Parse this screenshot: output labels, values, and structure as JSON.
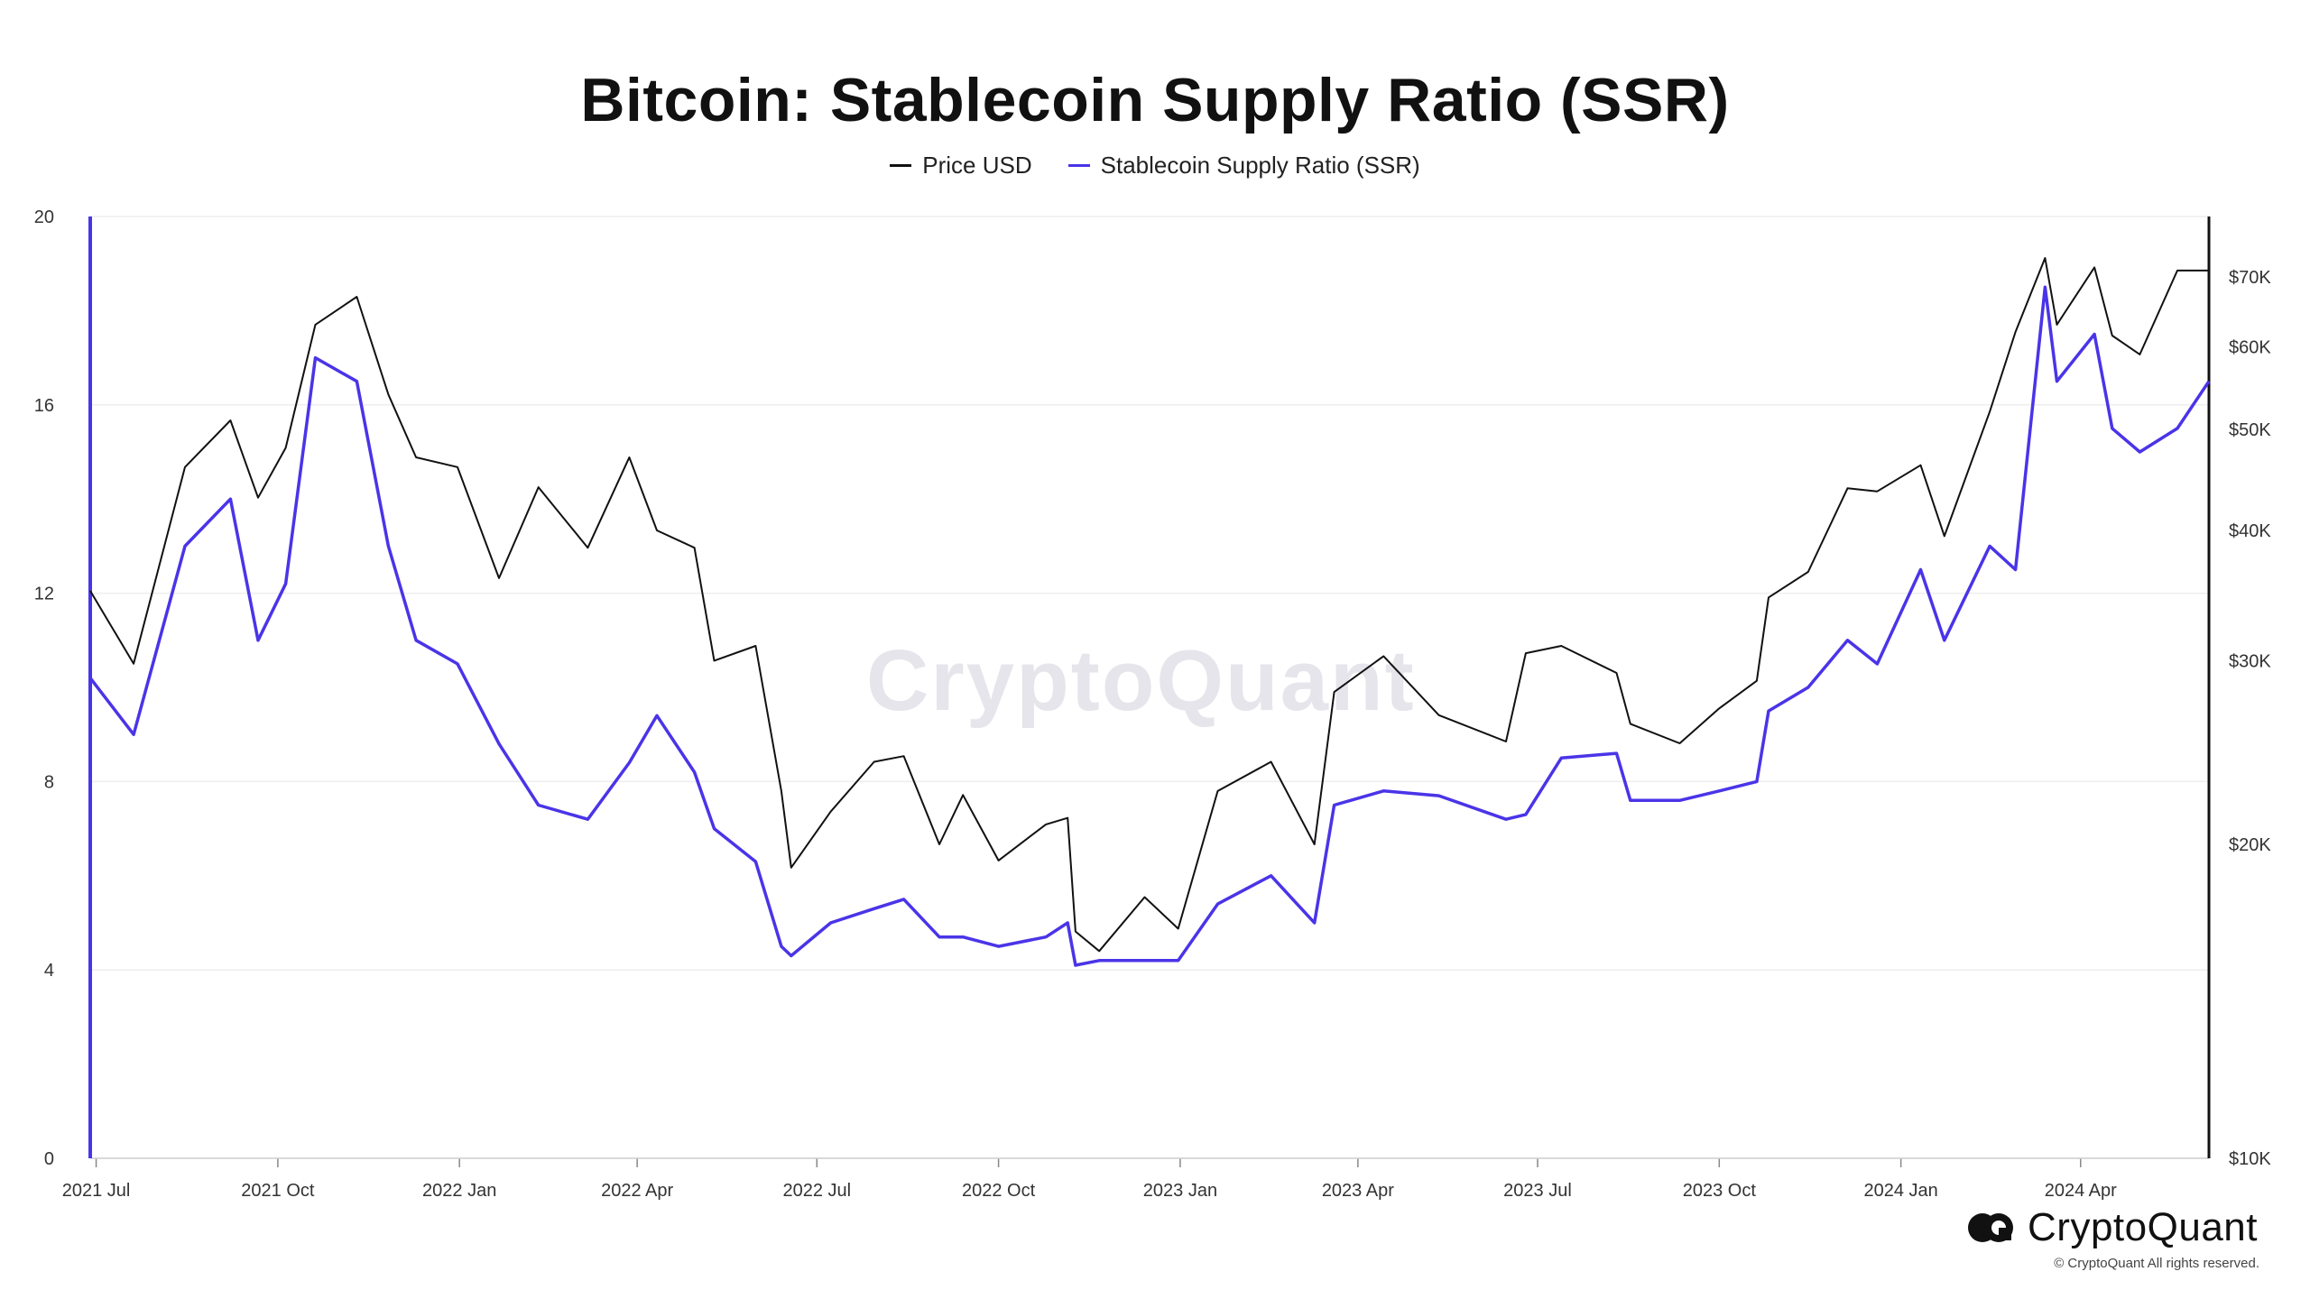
{
  "page": {
    "title": "Bitcoin: Stablecoin Supply Ratio (SSR)",
    "watermark": "CryptoQuant",
    "brand": "CryptoQuant",
    "copyright": "© CryptoQuant All rights reserved."
  },
  "colors": {
    "price": "#111111",
    "ssr": "#4a34e8",
    "grid": "#eeeeee",
    "axis": "#111111"
  },
  "chart_data": {
    "type": "line",
    "title": "Bitcoin: Stablecoin Supply Ratio (SSR)",
    "legend_position": "top-center",
    "grid": true,
    "x_ticks": [
      "2021 Jul",
      "2021 Oct",
      "2022 Jan",
      "2022 Apr",
      "2022 Jul",
      "2022 Oct",
      "2023 Jan",
      "2023 Apr",
      "2023 Jul",
      "2023 Oct",
      "2024 Jan",
      "2024 Apr"
    ],
    "x_range": [
      "2021-06-28",
      "2024-06-05"
    ],
    "y_left": {
      "label": "",
      "range": [
        0,
        20
      ],
      "ticks": [
        "0",
        "4",
        "8",
        "12",
        "16",
        "20"
      ]
    },
    "y_right": {
      "label": "",
      "scale": "log",
      "range": [
        10000,
        80000
      ],
      "ticks": [
        "$10K",
        "$20K",
        "$30K",
        "$40K",
        "$50K",
        "$60K",
        "$70K"
      ]
    },
    "x": [
      "2021-06-28",
      "2021-07-20",
      "2021-08-15",
      "2021-09-07",
      "2021-09-21",
      "2021-10-05",
      "2021-10-20",
      "2021-11-10",
      "2021-11-26",
      "2021-12-10",
      "2021-12-31",
      "2022-01-21",
      "2022-02-10",
      "2022-03-07",
      "2022-03-28",
      "2022-04-11",
      "2022-04-30",
      "2022-05-10",
      "2022-05-31",
      "2022-06-13",
      "2022-06-18",
      "2022-07-08",
      "2022-07-30",
      "2022-08-14",
      "2022-09-01",
      "2022-09-13",
      "2022-10-01",
      "2022-10-25",
      "2022-11-05",
      "2022-11-09",
      "2022-11-21",
      "2022-12-14",
      "2022-12-31",
      "2023-01-20",
      "2023-02-16",
      "2023-03-10",
      "2023-03-20",
      "2023-04-14",
      "2023-05-12",
      "2023-06-15",
      "2023-06-25",
      "2023-07-13",
      "2023-08-10",
      "2023-08-17",
      "2023-09-11",
      "2023-10-01",
      "2023-10-20",
      "2023-10-26",
      "2023-11-15",
      "2023-12-05",
      "2023-12-20",
      "2024-01-11",
      "2024-01-23",
      "2024-02-15",
      "2024-02-28",
      "2024-03-14",
      "2024-03-20",
      "2024-04-08",
      "2024-04-17",
      "2024-05-01",
      "2024-05-20",
      "2024-06-05"
    ],
    "series": [
      {
        "name": "Price USD",
        "axis": "right",
        "values": [
          35000,
          29800,
          46000,
          51000,
          43000,
          48000,
          63000,
          67000,
          54000,
          47000,
          46000,
          36000,
          44000,
          38500,
          47000,
          40000,
          38500,
          30000,
          31000,
          22500,
          19000,
          21500,
          24000,
          24300,
          20000,
          22300,
          19300,
          20900,
          21200,
          16500,
          15800,
          17800,
          16600,
          22500,
          24000,
          20000,
          28000,
          30300,
          26600,
          25100,
          30500,
          31000,
          29200,
          26100,
          25000,
          27000,
          28700,
          34500,
          36500,
          43900,
          43600,
          46200,
          39500,
          52000,
          62000,
          73000,
          63000,
          71500,
          61500,
          59000,
          71000,
          71000
        ]
      },
      {
        "name": "Stablecoin Supply Ratio (SSR)",
        "axis": "left",
        "values": [
          10.2,
          9.0,
          13.0,
          14.0,
          11.0,
          12.2,
          17.0,
          16.5,
          13.0,
          11.0,
          10.5,
          8.8,
          7.5,
          7.2,
          8.4,
          9.4,
          8.2,
          7.0,
          6.3,
          4.5,
          4.3,
          5.0,
          5.3,
          5.5,
          4.7,
          4.7,
          4.5,
          4.7,
          5.0,
          4.1,
          4.2,
          4.2,
          4.2,
          5.4,
          6.0,
          5.0,
          7.5,
          7.8,
          7.7,
          7.2,
          7.3,
          8.5,
          8.6,
          7.6,
          7.6,
          7.8,
          8.0,
          9.5,
          10.0,
          11.0,
          10.5,
          12.5,
          11.0,
          13.0,
          12.5,
          18.5,
          16.5,
          17.5,
          15.5,
          15.0,
          15.5,
          16.5
        ]
      }
    ]
  }
}
